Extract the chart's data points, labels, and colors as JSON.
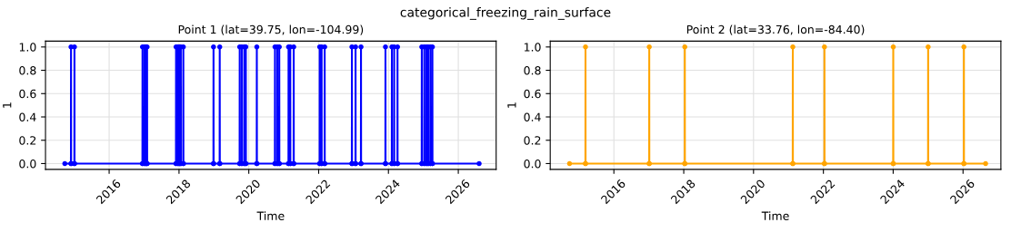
{
  "chart_data": [
    {
      "type": "line",
      "title": "Point 1 (lat=39.75, lon=-104.99)",
      "xlabel": "Time",
      "ylabel": "1",
      "annotations": [
        "categorical_freezing_rain_surface"
      ],
      "series": [
        {
          "color": "#0000ff",
          "x": [
            "2014-09-24",
            "2014-11-27",
            "2014-11-28",
            "2014-11-29",
            "2015-01-02",
            "2015-01-03",
            "2015-01-04",
            "2016-12-14",
            "2016-12-15",
            "2016-12-16",
            "2017-01-04",
            "2017-01-05",
            "2017-01-06",
            "2017-01-19",
            "2017-01-20",
            "2017-01-21",
            "2017-01-31",
            "2017-02-01",
            "2017-02-02",
            "2017-11-30",
            "2017-12-01",
            "2017-12-02",
            "2017-12-19",
            "2017-12-20",
            "2017-12-21",
            "2018-01-04",
            "2018-01-05",
            "2018-01-06",
            "2018-01-19",
            "2018-01-20",
            "2018-01-21",
            "2018-02-14",
            "2018-02-15",
            "2018-02-16",
            "2018-12-27",
            "2018-12-28",
            "2018-12-29",
            "2019-03-02",
            "2019-03-03",
            "2019-03-04",
            "2019-09-27",
            "2019-09-28",
            "2019-09-29",
            "2019-10-19",
            "2019-10-20",
            "2019-10-21",
            "2019-11-14",
            "2019-11-15",
            "2019-11-16",
            "2019-11-30",
            "2019-12-01",
            "2019-12-02",
            "2020-03-24",
            "2020-03-25",
            "2020-03-26",
            "2020-09-30",
            "2020-10-01",
            "2020-10-02",
            "2020-10-24",
            "2020-10-25",
            "2020-10-26",
            "2020-11-14",
            "2020-11-15",
            "2020-11-16",
            "2021-02-19",
            "2021-02-20",
            "2021-02-21",
            "2021-03-09",
            "2021-03-10",
            "2021-03-11",
            "2021-04-14",
            "2021-04-15",
            "2021-04-16",
            "2022-01-11",
            "2022-01-12",
            "2022-01-13",
            "2022-01-31",
            "2022-02-01",
            "2022-02-02",
            "2022-03-04",
            "2022-03-05",
            "2022-03-06",
            "2022-12-14",
            "2022-12-15",
            "2022-12-16",
            "2023-01-21",
            "2023-01-22",
            "2023-01-23",
            "2023-03-19",
            "2023-03-20",
            "2023-03-21",
            "2023-11-30",
            "2023-12-01",
            "2023-12-02",
            "2024-02-05",
            "2024-02-06",
            "2024-02-07",
            "2024-02-29",
            "2024-03-01",
            "2024-03-02",
            "2024-04-04",
            "2024-04-05",
            "2024-04-06",
            "2024-12-14",
            "2024-12-15",
            "2024-12-16",
            "2025-01-09",
            "2025-01-10",
            "2025-01-11",
            "2025-01-31",
            "2025-02-01",
            "2025-02-02",
            "2025-02-19",
            "2025-02-20",
            "2025-02-21",
            "2025-03-14",
            "2025-03-15",
            "2025-03-16",
            "2025-04-04",
            "2025-04-05",
            "2025-04-06",
            "2026-08-07"
          ],
          "values": [
            0,
            0,
            1,
            0,
            0,
            1,
            0,
            0,
            1,
            0,
            0,
            1,
            0,
            0,
            1,
            0,
            0,
            1,
            0,
            0,
            1,
            0,
            0,
            1,
            0,
            0,
            1,
            0,
            0,
            1,
            0,
            0,
            1,
            0,
            0,
            1,
            0,
            0,
            1,
            0,
            0,
            1,
            0,
            0,
            1,
            0,
            0,
            1,
            0,
            0,
            1,
            0,
            0,
            1,
            0,
            0,
            1,
            0,
            0,
            1,
            0,
            0,
            1,
            0,
            0,
            1,
            0,
            0,
            1,
            0,
            0,
            1,
            0,
            0,
            1,
            0,
            0,
            1,
            0,
            0,
            1,
            0,
            0,
            1,
            0,
            0,
            1,
            0,
            0,
            1,
            0,
            0,
            1,
            0,
            0,
            1,
            0,
            0,
            1,
            0,
            0,
            1,
            0,
            0,
            1,
            0,
            0,
            1,
            0,
            0,
            1,
            0,
            0,
            1,
            0,
            0,
            1,
            0,
            0,
            1,
            0,
            0
          ]
        }
      ],
      "xlim": [
        "2014-03-06",
        "2027-02-01"
      ],
      "xticks": [
        "2016",
        "2018",
        "2020",
        "2022",
        "2024",
        "2026"
      ],
      "ylim": [
        -0.05,
        1.05
      ],
      "yticks": [
        {
          "value": 0,
          "label": "0.0"
        },
        {
          "value": 0.2,
          "label": "0.2"
        },
        {
          "value": 0.4,
          "label": "0.4"
        },
        {
          "value": 0.6,
          "label": "0.6"
        },
        {
          "value": 0.8,
          "label": "0.8"
        },
        {
          "value": 1,
          "label": "1.0"
        }
      ],
      "grid": true,
      "marker": "circle",
      "line_style": "solid"
    },
    {
      "type": "line",
      "title": "Point 2 (lat=33.76, lon=-84.40)",
      "xlabel": "Time",
      "ylabel": "1",
      "series": [
        {
          "color": "#ffa500",
          "x": [
            "2014-09-24",
            "2015-03-09",
            "2015-03-10",
            "2015-03-11",
            "2017-01-04",
            "2017-01-05",
            "2017-01-06",
            "2018-01-11",
            "2018-01-12",
            "2018-01-13",
            "2021-02-14",
            "2021-02-15",
            "2021-02-16",
            "2022-01-11",
            "2022-01-12",
            "2022-01-13",
            "2024-01-01",
            "2024-01-02",
            "2024-01-03",
            "2024-12-31",
            "2025-01-01",
            "2025-01-02",
            "2026-01-09",
            "2026-01-10",
            "2026-01-11",
            "2026-08-25"
          ],
          "values": [
            0,
            0,
            1,
            0,
            0,
            1,
            0,
            0,
            1,
            0,
            0,
            1,
            0,
            0,
            1,
            0,
            0,
            1,
            0,
            0,
            1,
            0,
            0,
            1,
            0,
            0
          ]
        }
      ],
      "xlim": [
        "2014-03-06",
        "2027-02-01"
      ],
      "xticks": [
        "2016",
        "2018",
        "2020",
        "2022",
        "2024",
        "2026"
      ],
      "ylim": [
        -0.05,
        1.05
      ],
      "yticks": [
        {
          "value": 0,
          "label": "0.0"
        },
        {
          "value": 0.2,
          "label": "0.2"
        },
        {
          "value": 0.4,
          "label": "0.4"
        },
        {
          "value": 0.6,
          "label": "0.6"
        },
        {
          "value": 0.8,
          "label": "0.8"
        },
        {
          "value": 1,
          "label": "1.0"
        }
      ],
      "grid": true,
      "marker": "circle",
      "line_style": "solid"
    }
  ]
}
